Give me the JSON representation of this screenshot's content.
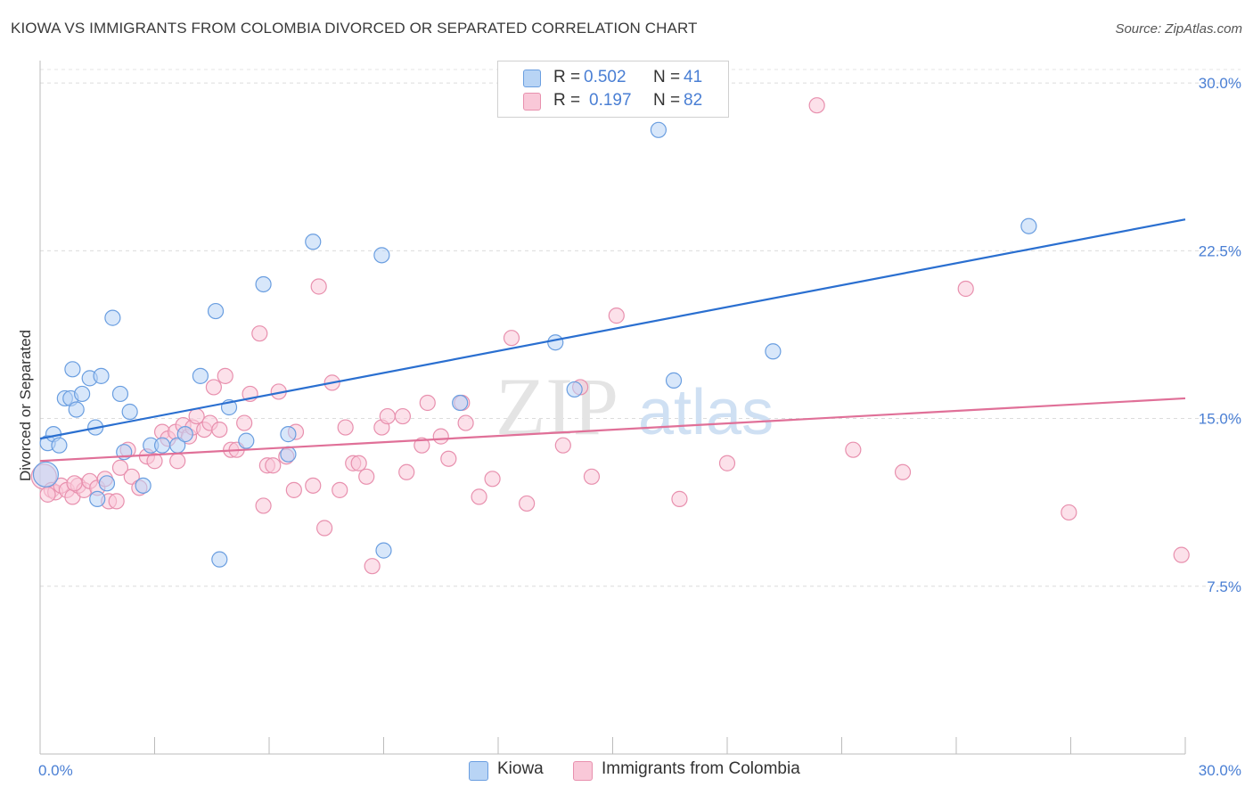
{
  "title": "KIOWA VS IMMIGRANTS FROM COLOMBIA DIVORCED OR SEPARATED CORRELATION CHART",
  "source": "Source: ZipAtlas.com",
  "watermark": {
    "zip": "ZIP",
    "atlas": "atlas"
  },
  "legend": {
    "rows": [
      {
        "r_label": "R =",
        "r_value": "0.502",
        "n_label": "N =",
        "n_value": "41",
        "color": "#b8d4f5",
        "border": "#6a9ee0"
      },
      {
        "r_label": "R =",
        "r_value": "0.197",
        "n_label": "N =",
        "n_value": "82",
        "color": "#f9c8d8",
        "border": "#e890ae"
      }
    ]
  },
  "bottom_legend": [
    {
      "label": "Kiowa",
      "color": "#b8d4f5",
      "border": "#6a9ee0"
    },
    {
      "label": "Immigrants from Colombia",
      "color": "#f9c8d8",
      "border": "#e890ae"
    }
  ],
  "chart_data": {
    "type": "scatter",
    "title": "KIOWA VS IMMIGRANTS FROM COLOMBIA DIVORCED OR SEPARATED CORRELATION CHART",
    "xlabel": "",
    "ylabel": "Divorced or Separated",
    "xlim": [
      0,
      30
    ],
    "ylim": [
      0,
      31
    ],
    "x_tick_labels": [
      "0.0%",
      "30.0%"
    ],
    "y_ticks": [
      7.5,
      15.0,
      22.5,
      30.0
    ],
    "y_tick_labels": [
      "7.5%",
      "15.0%",
      "22.5%",
      "30.0%"
    ],
    "grid": "horizontal dashed",
    "legend_position": "top-center",
    "series": [
      {
        "name": "Kiowa",
        "color": "#6a9ee0",
        "fill": "#b8d4f5",
        "line_color": "#2a6fd0",
        "trend": {
          "x0": 0,
          "y0": 14.1,
          "x1": 30,
          "y1": 23.9
        },
        "points": [
          [
            0.2,
            13.9
          ],
          [
            0.35,
            14.3
          ],
          [
            0.5,
            13.8
          ],
          [
            0.65,
            15.9
          ],
          [
            0.8,
            15.9
          ],
          [
            0.85,
            17.2
          ],
          [
            0.95,
            15.4
          ],
          [
            1.1,
            16.1
          ],
          [
            1.3,
            16.8
          ],
          [
            1.45,
            14.6
          ],
          [
            1.5,
            11.4
          ],
          [
            1.6,
            16.9
          ],
          [
            1.75,
            12.1
          ],
          [
            1.9,
            19.5
          ],
          [
            2.1,
            16.1
          ],
          [
            2.2,
            13.5
          ],
          [
            2.35,
            15.3
          ],
          [
            2.7,
            12.0
          ],
          [
            2.9,
            13.8
          ],
          [
            3.2,
            13.8
          ],
          [
            3.6,
            13.8
          ],
          [
            3.8,
            14.3
          ],
          [
            4.2,
            16.9
          ],
          [
            4.6,
            19.8
          ],
          [
            4.7,
            8.7
          ],
          [
            4.95,
            15.5
          ],
          [
            5.4,
            14.0
          ],
          [
            5.85,
            21.0
          ],
          [
            6.5,
            13.4
          ],
          [
            6.5,
            14.3
          ],
          [
            7.15,
            22.9
          ],
          [
            8.95,
            22.3
          ],
          [
            9.0,
            9.1
          ],
          [
            11.0,
            15.7
          ],
          [
            13.5,
            18.4
          ],
          [
            14.0,
            16.3
          ],
          [
            16.2,
            27.9
          ],
          [
            16.6,
            16.7
          ],
          [
            19.2,
            18.0
          ],
          [
            25.9,
            23.6
          ],
          [
            0.15,
            12.5
          ]
        ]
      },
      {
        "name": "Immigrants from Colombia",
        "color": "#e890ae",
        "fill": "#f9c8d8",
        "line_color": "#e07098",
        "trend": {
          "x0": 0,
          "y0": 13.1,
          "x1": 30,
          "y1": 15.9
        },
        "points": [
          [
            0.1,
            12.4
          ],
          [
            0.3,
            11.8
          ],
          [
            0.4,
            11.7
          ],
          [
            0.55,
            12.0
          ],
          [
            0.7,
            11.8
          ],
          [
            0.85,
            11.5
          ],
          [
            1.0,
            12.0
          ],
          [
            1.15,
            11.8
          ],
          [
            1.3,
            12.2
          ],
          [
            1.5,
            11.9
          ],
          [
            1.7,
            12.3
          ],
          [
            1.8,
            11.3
          ],
          [
            2.0,
            11.3
          ],
          [
            2.1,
            12.8
          ],
          [
            2.3,
            13.6
          ],
          [
            2.4,
            12.4
          ],
          [
            2.6,
            11.9
          ],
          [
            2.8,
            13.3
          ],
          [
            3.0,
            13.1
          ],
          [
            3.2,
            14.4
          ],
          [
            3.35,
            14.1
          ],
          [
            3.55,
            14.4
          ],
          [
            3.6,
            13.1
          ],
          [
            3.75,
            14.7
          ],
          [
            3.9,
            14.2
          ],
          [
            4.0,
            14.6
          ],
          [
            4.1,
            15.1
          ],
          [
            4.3,
            14.5
          ],
          [
            4.45,
            14.8
          ],
          [
            4.55,
            16.4
          ],
          [
            4.7,
            14.5
          ],
          [
            4.85,
            16.9
          ],
          [
            5.0,
            13.6
          ],
          [
            5.15,
            13.6
          ],
          [
            5.35,
            14.8
          ],
          [
            5.5,
            16.1
          ],
          [
            5.75,
            18.8
          ],
          [
            5.85,
            11.1
          ],
          [
            5.95,
            12.9
          ],
          [
            6.1,
            12.9
          ],
          [
            6.25,
            16.2
          ],
          [
            6.45,
            13.3
          ],
          [
            6.65,
            11.8
          ],
          [
            6.7,
            14.4
          ],
          [
            7.15,
            12.0
          ],
          [
            7.3,
            20.9
          ],
          [
            7.45,
            10.1
          ],
          [
            7.65,
            16.6
          ],
          [
            7.85,
            11.8
          ],
          [
            8.0,
            14.6
          ],
          [
            8.2,
            13.0
          ],
          [
            8.35,
            13.0
          ],
          [
            8.55,
            12.4
          ],
          [
            8.7,
            8.4
          ],
          [
            8.95,
            14.6
          ],
          [
            9.1,
            15.1
          ],
          [
            9.5,
            15.1
          ],
          [
            9.6,
            12.6
          ],
          [
            10.0,
            13.8
          ],
          [
            10.15,
            15.7
          ],
          [
            10.5,
            14.2
          ],
          [
            10.7,
            13.2
          ],
          [
            11.05,
            15.7
          ],
          [
            11.15,
            14.8
          ],
          [
            11.5,
            11.5
          ],
          [
            11.85,
            12.3
          ],
          [
            12.35,
            18.6
          ],
          [
            12.75,
            11.2
          ],
          [
            13.7,
            13.8
          ],
          [
            14.15,
            16.4
          ],
          [
            14.45,
            12.4
          ],
          [
            15.1,
            19.6
          ],
          [
            16.75,
            11.4
          ],
          [
            18.0,
            13.0
          ],
          [
            20.35,
            29.0
          ],
          [
            21.3,
            13.6
          ],
          [
            22.6,
            12.6
          ],
          [
            24.25,
            20.8
          ],
          [
            26.95,
            10.8
          ],
          [
            29.9,
            8.9
          ],
          [
            0.2,
            11.6
          ],
          [
            0.9,
            12.1
          ]
        ]
      }
    ]
  }
}
